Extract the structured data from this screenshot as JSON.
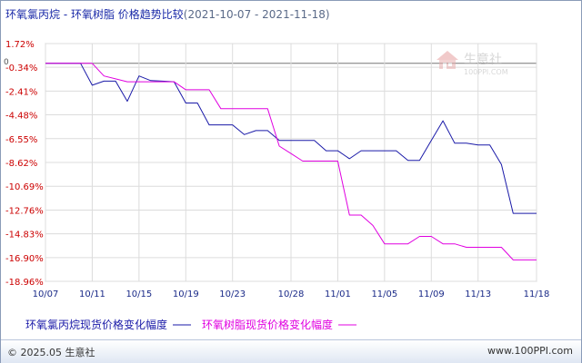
{
  "title": {
    "main": "环氧氯丙烷 - 环氧树脂 价格趋势比较",
    "period": "(2021-10-07 - 2021-11-18)"
  },
  "watermark": {
    "brand": "生意社",
    "url": "100PPI.COM"
  },
  "footer": {
    "copyright": "© 2025.05 生意社",
    "site": "www.100PPI.com"
  },
  "colors": {
    "series_1": "#1a1aa8",
    "series_2": "#e000e0",
    "zero_line": "#777777",
    "grid": "#dcdcdc",
    "axis_labels": "#cc0000",
    "x_labels": "#1a2a88"
  },
  "chart_data": {
    "type": "line",
    "title": "环氧氯丙烷 - 环氧树脂 价格趋势比较",
    "ylim": [
      -18.96,
      1.72
    ],
    "y_ticks": [
      1.72,
      -0.34,
      -2.41,
      -4.48,
      -6.55,
      -8.62,
      -10.69,
      -12.76,
      -14.83,
      -16.9,
      -18.96
    ],
    "y_tick_labels": [
      "1.72%",
      "-0.34%",
      "-2.41%",
      "-4.48%",
      "-6.55%",
      "-8.62%",
      "-10.69%",
      "-12.76%",
      "-14.83%",
      "-16.90%",
      "-18.96%"
    ],
    "zero_label": "0",
    "grid": true,
    "x_tick_labels": [
      "10/07",
      "10/11",
      "10/15",
      "10/19",
      "10/23",
      "10/28",
      "11/01",
      "11/05",
      "11/09",
      "11/13",
      "11/18"
    ],
    "x": [
      "10/07",
      "10/08",
      "10/09",
      "10/10",
      "10/11",
      "10/12",
      "10/13",
      "10/14",
      "10/15",
      "10/16",
      "10/17",
      "10/18",
      "10/19",
      "10/20",
      "10/21",
      "10/22",
      "10/23",
      "10/24",
      "10/25",
      "10/26",
      "10/27",
      "10/28",
      "10/29",
      "10/30",
      "10/31",
      "11/01",
      "11/02",
      "11/03",
      "11/04",
      "11/05",
      "11/06",
      "11/07",
      "11/08",
      "11/09",
      "11/10",
      "11/11",
      "11/12",
      "11/13",
      "11/14",
      "11/15",
      "11/16",
      "11/17",
      "11/18"
    ],
    "series": [
      {
        "name": "环氧氯丙烷现货价格变化幅度",
        "values": [
          0,
          0,
          0,
          0,
          -1.9,
          -1.55,
          -1.55,
          -3.3,
          -1.1,
          -1.5,
          -1.55,
          -1.6,
          -3.45,
          -3.45,
          -5.35,
          -5.35,
          -5.35,
          -6.2,
          -5.85,
          -5.85,
          -6.7,
          -6.7,
          -6.7,
          -6.7,
          -7.6,
          -7.6,
          -8.3,
          -7.6,
          -7.6,
          -7.6,
          -7.6,
          -8.45,
          -8.45,
          -6.7,
          -5.0,
          -6.95,
          -6.95,
          -7.1,
          -7.1,
          -8.8,
          -13.05,
          -13.05,
          -13.05
        ],
        "color": "#1a1aa8"
      },
      {
        "name": "环氧树脂现货价格变化幅度",
        "values": [
          0,
          0,
          0,
          0,
          0,
          -1.1,
          -1.35,
          -1.6,
          -1.6,
          -1.6,
          -1.6,
          -1.6,
          -2.3,
          -2.3,
          -2.3,
          -3.95,
          -3.95,
          -3.95,
          -3.95,
          -3.95,
          -7.2,
          -7.85,
          -8.5,
          -8.5,
          -8.5,
          -8.5,
          -13.2,
          -13.2,
          -14.1,
          -15.7,
          -15.7,
          -15.7,
          -15.05,
          -15.05,
          -15.7,
          -15.7,
          -16.0,
          -16.0,
          -16.0,
          -16.0,
          -17.1,
          -17.1,
          -17.1
        ],
        "color": "#e000e0"
      }
    ]
  }
}
